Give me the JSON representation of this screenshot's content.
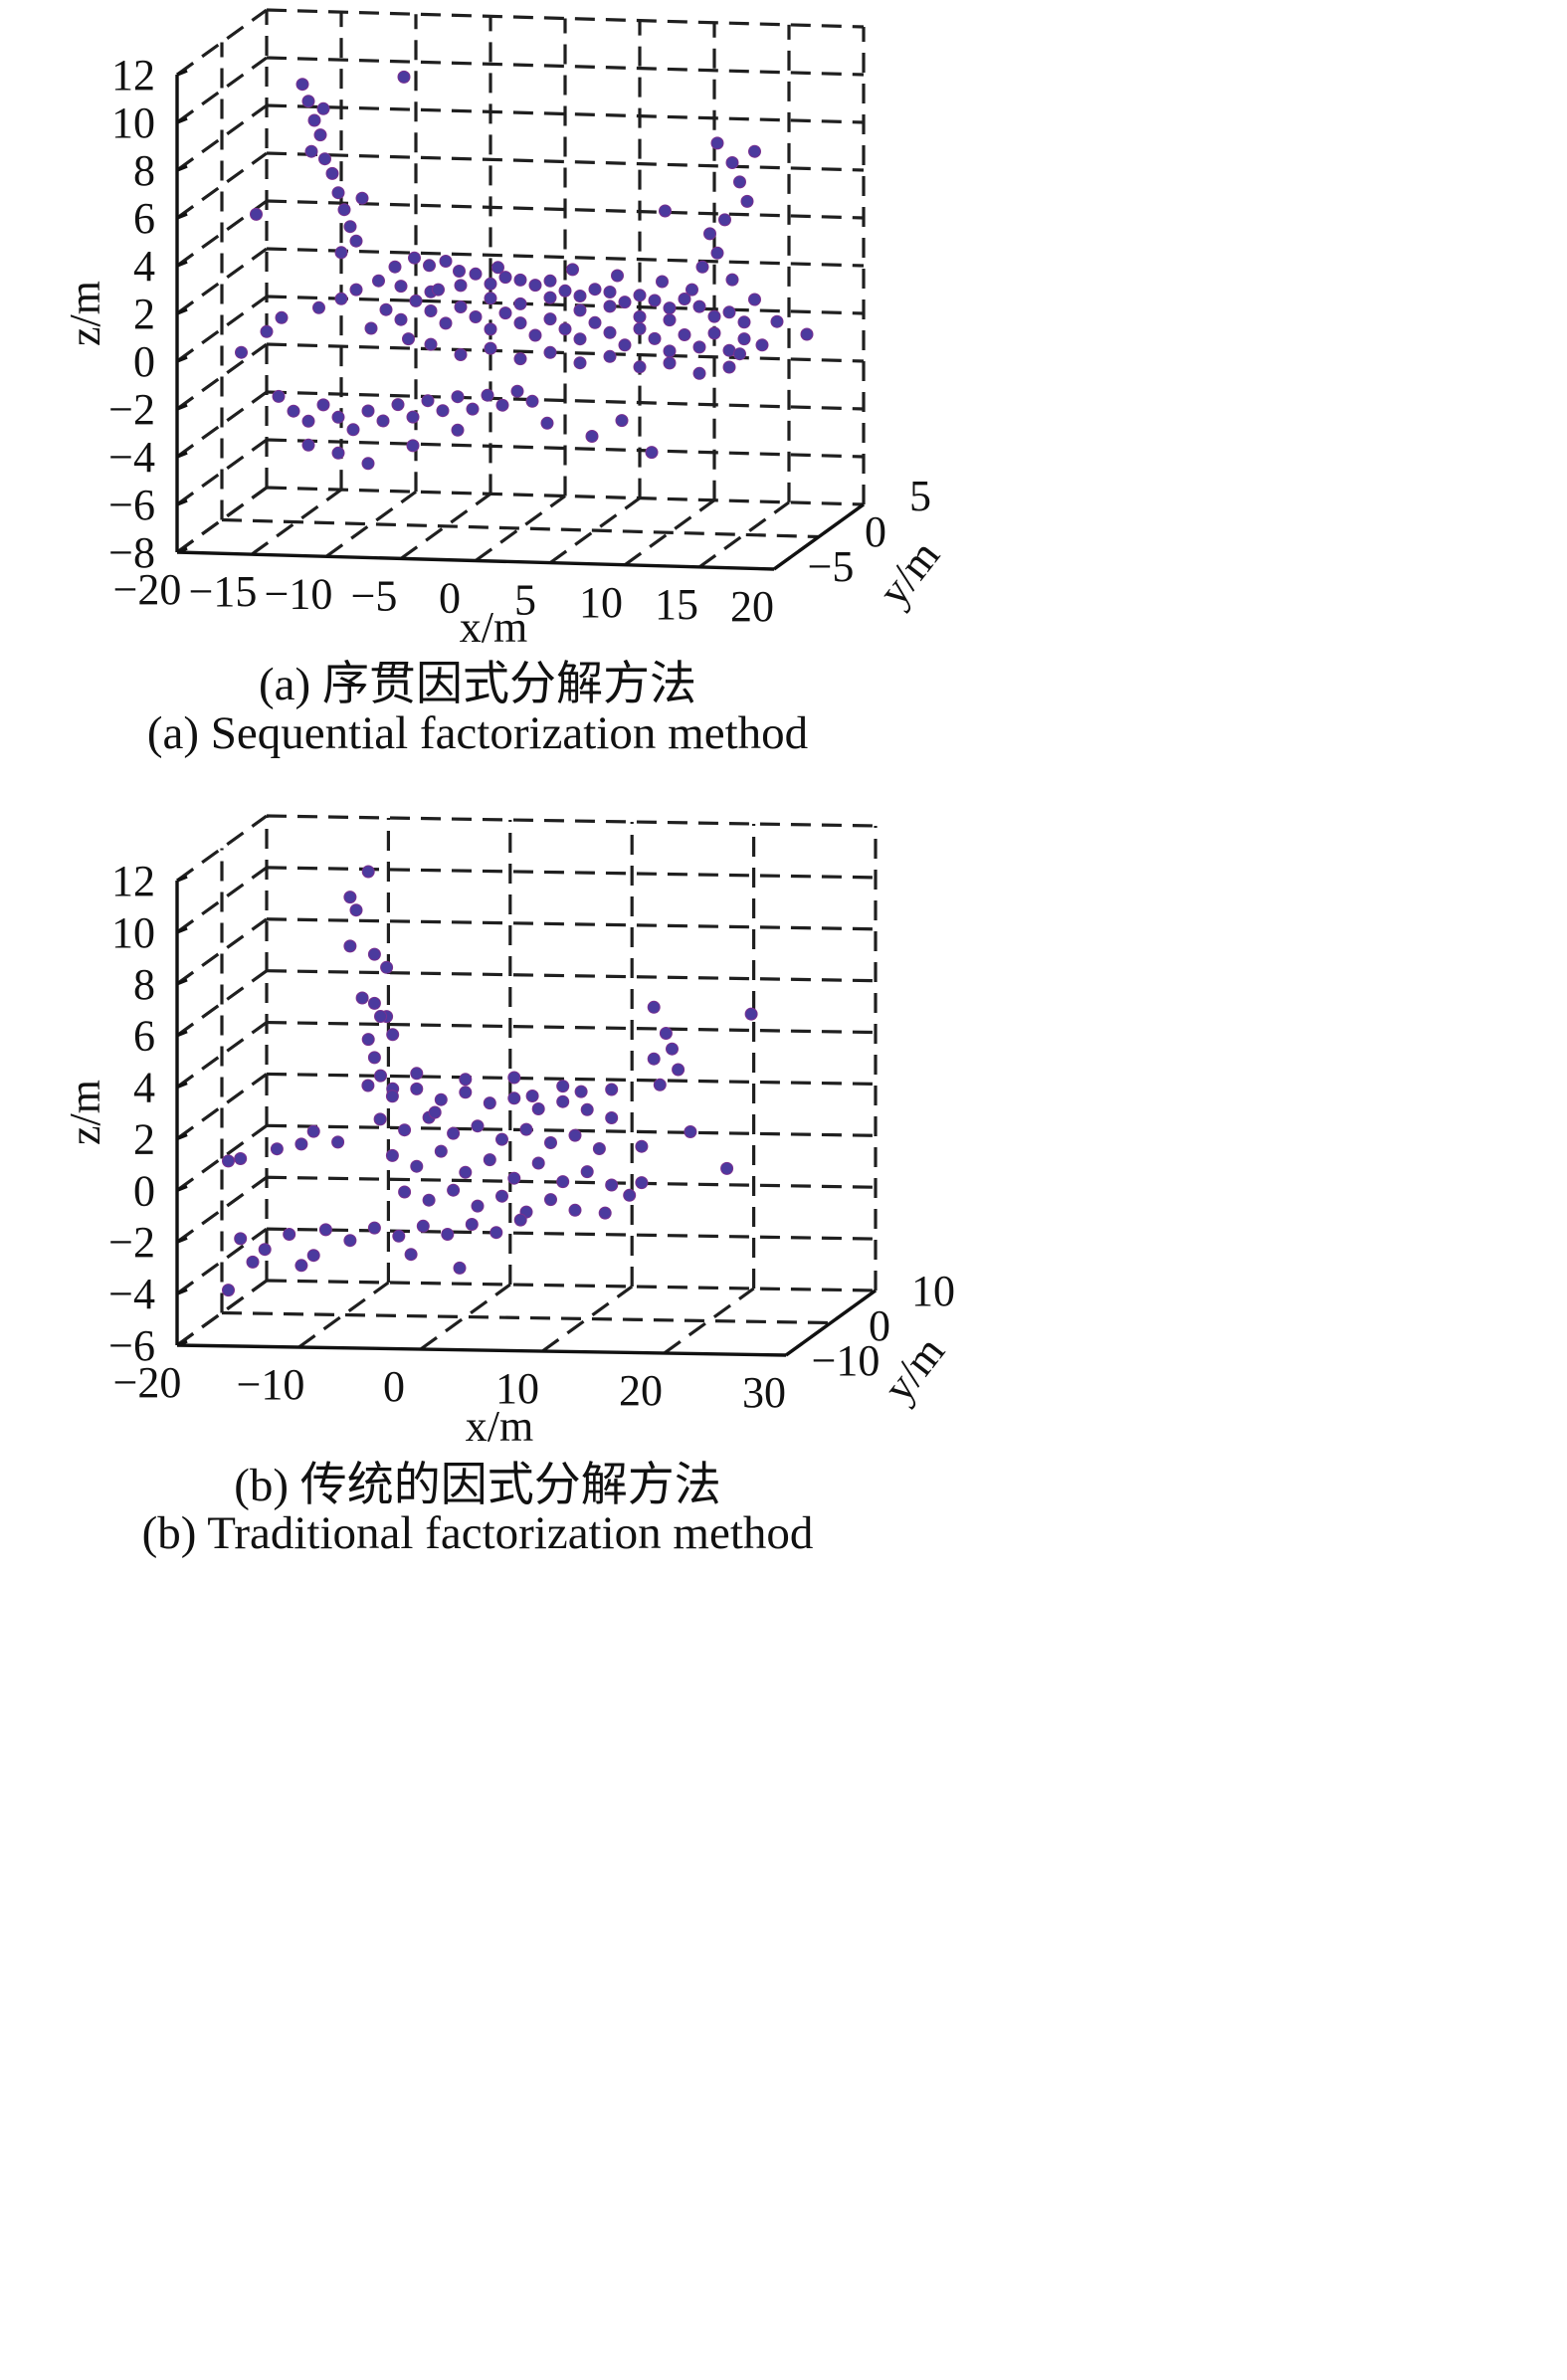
{
  "chart_data": [
    {
      "type": "scatter",
      "title": "",
      "xlabel": "x/m",
      "ylabel": "y/m",
      "zlabel": "z/m",
      "x_ticks": [
        "−20",
        "−15",
        "−10",
        "−5",
        "0",
        "5",
        "10",
        "15",
        "20"
      ],
      "y_ticks": [
        "−5",
        "0",
        "5"
      ],
      "z_ticks": [
        "12",
        "10",
        "8",
        "6",
        "4",
        "2",
        "0",
        "−2",
        "−4",
        "−6",
        "−8"
      ],
      "xlim": [
        -20,
        20
      ],
      "ylim": [
        -5,
        5
      ],
      "zlim": [
        -8,
        12
      ],
      "grid": true,
      "caption_cn": "(a) 序贯因式分解方法",
      "caption_en": "(a) Sequential factorization method",
      "marker_color": "#4b3a9e",
      "points": [
        [
          -13.4,
          -2,
          10.9
        ],
        [
          -13,
          -2,
          10.2
        ],
        [
          -12.6,
          -2,
          9.4
        ],
        [
          -12.2,
          -2,
          8.8
        ],
        [
          -11.9,
          -2,
          7.8
        ],
        [
          -11.4,
          -2,
          7.2
        ],
        [
          -11,
          -2,
          6.4
        ],
        [
          -10.6,
          -2,
          5.7
        ],
        [
          -10.2,
          -2,
          5
        ],
        [
          -12.8,
          -2,
          8.1
        ],
        [
          -12,
          -2,
          9.9
        ],
        [
          -9.8,
          -2,
          4.4
        ],
        [
          -9.4,
          -2,
          6.2
        ],
        [
          -10.8,
          -2,
          3.9
        ],
        [
          -9,
          2,
          10.2
        ],
        [
          -16.5,
          -2,
          5.4
        ],
        [
          -17.5,
          -2,
          -0.4
        ],
        [
          -15.8,
          -2,
          0.5
        ],
        [
          -14.8,
          -2,
          1.1
        ],
        [
          -13.5,
          0,
          1
        ],
        [
          -12,
          0,
          1.4
        ],
        [
          -11,
          0,
          1.8
        ],
        [
          -9.5,
          0,
          2.2
        ],
        [
          -8.4,
          0,
          2.8
        ],
        [
          -7.1,
          0,
          3.2
        ],
        [
          -6.1,
          0,
          2.9
        ],
        [
          -5,
          0,
          3.1
        ],
        [
          -4.1,
          0,
          2.7
        ],
        [
          -3,
          0,
          2.6
        ],
        [
          -2,
          0,
          2.2
        ],
        [
          -1,
          0,
          2.5
        ],
        [
          0,
          0,
          2.4
        ],
        [
          1,
          0,
          2.2
        ],
        [
          2,
          0,
          2.4
        ],
        [
          3,
          0,
          2
        ],
        [
          4,
          0,
          1.8
        ],
        [
          5,
          0,
          2.1
        ],
        [
          6,
          0,
          2
        ],
        [
          7,
          0,
          1.6
        ],
        [
          8,
          0,
          1.9
        ],
        [
          9,
          0,
          1.7
        ],
        [
          10,
          0,
          1.4
        ],
        [
          11,
          0,
          1.8
        ],
        [
          12,
          0,
          1.5
        ],
        [
          13,
          0,
          1.1
        ],
        [
          14,
          0,
          1.3
        ],
        [
          15,
          0,
          0.9
        ],
        [
          -9,
          0,
          1
        ],
        [
          -8,
          0,
          0.6
        ],
        [
          -7,
          0,
          1.4
        ],
        [
          -6,
          0,
          1
        ],
        [
          -5,
          0,
          0.5
        ],
        [
          -4,
          0,
          1.2
        ],
        [
          -3,
          0,
          0.8
        ],
        [
          -2,
          0,
          0.3
        ],
        [
          -1,
          0,
          1
        ],
        [
          0,
          0,
          0.6
        ],
        [
          1,
          0,
          0.1
        ],
        [
          2,
          0,
          0.8
        ],
        [
          3,
          0,
          0.4
        ],
        [
          4,
          0,
          0
        ],
        [
          5,
          0,
          0.7
        ],
        [
          6,
          0,
          0.3
        ],
        [
          7,
          0,
          -0.2
        ],
        [
          8,
          0,
          0.5
        ],
        [
          9,
          0,
          0.1
        ],
        [
          10,
          0,
          -0.4
        ],
        [
          11,
          0,
          0.3
        ],
        [
          12,
          0,
          -0.2
        ],
        [
          13,
          0,
          0.4
        ],
        [
          14,
          0,
          -0.3
        ],
        [
          15,
          0,
          0.2
        ],
        [
          -8,
          0,
          2
        ],
        [
          -6,
          0,
          1.8
        ],
        [
          -4,
          0,
          2.1
        ],
        [
          -2,
          0,
          1.6
        ],
        [
          0,
          0,
          1.4
        ],
        [
          2,
          0,
          1.7
        ],
        [
          4,
          0,
          1.2
        ],
        [
          6,
          0,
          1.4
        ],
        [
          8,
          0,
          1
        ],
        [
          10,
          0,
          0.9
        ],
        [
          -6,
          0,
          -0.4
        ],
        [
          -4,
          0,
          -0.8
        ],
        [
          -2,
          0,
          -0.5
        ],
        [
          0,
          0,
          -0.9
        ],
        [
          2,
          0,
          -0.6
        ],
        [
          4,
          0,
          -1
        ],
        [
          6,
          0,
          -0.7
        ],
        [
          8,
          0,
          -1.1
        ],
        [
          10,
          0,
          -0.9
        ],
        [
          12,
          0,
          -1.3
        ],
        [
          14,
          0,
          -1
        ],
        [
          -15,
          -2,
          -2.2
        ],
        [
          -14,
          -2,
          -2.8
        ],
        [
          -13,
          -2,
          -3.2
        ],
        [
          -12,
          -2,
          -2.5
        ],
        [
          -11,
          -2,
          -3
        ],
        [
          -10,
          -2,
          -3.5
        ],
        [
          -9,
          -2,
          -2.7
        ],
        [
          -8,
          -2,
          -3.1
        ],
        [
          -7,
          -2,
          -2.4
        ],
        [
          -6,
          -2,
          -2.9
        ],
        [
          -5,
          -2,
          -2.2
        ],
        [
          -4,
          -2,
          -2.6
        ],
        [
          -3,
          -2,
          -2
        ],
        [
          -2,
          -2,
          -2.5
        ],
        [
          -1,
          -2,
          -1.9
        ],
        [
          0,
          -2,
          -2.3
        ],
        [
          1,
          -2,
          -1.7
        ],
        [
          2,
          -2,
          -2.1
        ],
        [
          -13,
          -2,
          -4.2
        ],
        [
          -11,
          -2,
          -4.5
        ],
        [
          -9,
          -2,
          -4.9
        ],
        [
          -6,
          -2,
          -4.1
        ],
        [
          -3,
          -2,
          -3.4
        ],
        [
          3,
          -2,
          -3
        ],
        [
          6,
          -2,
          -3.5
        ],
        [
          8,
          -2,
          -2.8
        ],
        [
          10,
          -2,
          -4.1
        ],
        [
          12,
          2,
          7.8
        ],
        [
          13,
          2,
          7
        ],
        [
          13.5,
          2,
          6.2
        ],
        [
          14,
          2,
          5.4
        ],
        [
          12.5,
          2,
          4.6
        ],
        [
          11.5,
          2,
          4
        ],
        [
          12,
          2,
          3.2
        ],
        [
          11,
          2,
          2.6
        ],
        [
          13,
          2,
          2.1
        ],
        [
          14.5,
          2,
          1.3
        ],
        [
          16,
          2,
          0.4
        ],
        [
          15,
          2,
          -0.6
        ],
        [
          13.5,
          2,
          -1
        ],
        [
          18,
          2,
          -0.1
        ],
        [
          8.5,
          2,
          4.9
        ],
        [
          14.5,
          2,
          7.5
        ],
        [
          -10,
          0,
          0.2
        ],
        [
          -7.5,
          0,
          -0.2
        ],
        [
          -5.5,
          0,
          1.9
        ],
        [
          -1.5,
          0,
          2.9
        ],
        [
          3.5,
          0,
          2.9
        ],
        [
          6.5,
          0,
          2.7
        ],
        [
          9.5,
          0,
          2.5
        ],
        [
          11.5,
          0,
          2.2
        ]
      ]
    },
    {
      "type": "scatter",
      "title": "",
      "xlabel": "x/m",
      "ylabel": "y/m",
      "zlabel": "z/m",
      "x_ticks": [
        "−20",
        "−10",
        "0",
        "10",
        "20",
        "30"
      ],
      "y_ticks": [
        "−10",
        "0",
        "10"
      ],
      "z_ticks": [
        "12",
        "10",
        "8",
        "6",
        "4",
        "2",
        "0",
        "−2",
        "−4",
        "−6"
      ],
      "xlim": [
        -20,
        30
      ],
      "ylim": [
        -10,
        10
      ],
      "zlim": [
        -6,
        12
      ],
      "grid": true,
      "caption_cn": "(b) 传统的因式分解方法",
      "caption_en": "(b) Traditional factorization method",
      "marker_color": "#4b3a9e",
      "points": [
        [
          -6.5,
          -4,
          11.7
        ],
        [
          -8,
          -4,
          10.7
        ],
        [
          -7.5,
          -4,
          10.2
        ],
        [
          -8,
          -4,
          8.8
        ],
        [
          -6,
          -4,
          8.5
        ],
        [
          -5,
          -4,
          8
        ],
        [
          -7,
          -4,
          6.8
        ],
        [
          -6,
          -4,
          6.6
        ],
        [
          -5,
          -4,
          6.1
        ],
        [
          -4.5,
          -4,
          5.4
        ],
        [
          -6.5,
          -4,
          5.2
        ],
        [
          -6,
          -4,
          4.5
        ],
        [
          -5.5,
          -4,
          3.8
        ],
        [
          -4.5,
          -4,
          3.3
        ],
        [
          -5.5,
          -4,
          6.1
        ],
        [
          -18,
          -4,
          0.4
        ],
        [
          -17,
          -4,
          0.5
        ],
        [
          -14,
          -4,
          0.9
        ],
        [
          -12,
          -4,
          1.1
        ],
        [
          -11,
          -4,
          1.6
        ],
        [
          -9,
          -4,
          1.2
        ],
        [
          -8,
          0,
          2.9
        ],
        [
          -6,
          0,
          2.5
        ],
        [
          -4,
          0,
          2.8
        ],
        [
          -2,
          0,
          2.4
        ],
        [
          0,
          0,
          2.7
        ],
        [
          2,
          0,
          2.3
        ],
        [
          4,
          0,
          2.5
        ],
        [
          6,
          0,
          2.1
        ],
        [
          8,
          0,
          2.4
        ],
        [
          10,
          0,
          2.1
        ],
        [
          12,
          0,
          1.8
        ],
        [
          -7,
          0,
          1.6
        ],
        [
          -5,
          0,
          1.2
        ],
        [
          -3,
          0,
          1.7
        ],
        [
          -1,
          0,
          1.1
        ],
        [
          1,
          0,
          1.4
        ],
        [
          3,
          0,
          0.9
        ],
        [
          5,
          0,
          1.3
        ],
        [
          7,
          0,
          0.8
        ],
        [
          9,
          0,
          1.1
        ],
        [
          11,
          0,
          0.6
        ],
        [
          -6,
          0,
          0.2
        ],
        [
          -4,
          0,
          -0.2
        ],
        [
          -2,
          0,
          0.4
        ],
        [
          0,
          0,
          -0.4
        ],
        [
          2,
          0,
          0.1
        ],
        [
          4,
          0,
          -0.6
        ],
        [
          6,
          0,
          0
        ],
        [
          8,
          0,
          -0.7
        ],
        [
          10,
          0,
          -0.3
        ],
        [
          12,
          0,
          -0.8
        ],
        [
          -5,
          0,
          -1.2
        ],
        [
          -3,
          0,
          -1.5
        ],
        [
          -1,
          0,
          -1.1
        ],
        [
          1,
          0,
          -1.7
        ],
        [
          3,
          0,
          -1.3
        ],
        [
          5,
          0,
          -1.9
        ],
        [
          7,
          0,
          -1.4
        ],
        [
          9,
          0,
          -1.8
        ],
        [
          -4,
          0,
          3.4
        ],
        [
          0,
          0,
          3.2
        ],
        [
          4,
          0,
          3.3
        ],
        [
          8,
          0,
          3
        ],
        [
          12,
          0,
          2.9
        ],
        [
          -17,
          -4,
          -2.6
        ],
        [
          -15,
          -4,
          -3
        ],
        [
          -13,
          -4,
          -2.4
        ],
        [
          -11,
          -4,
          -3.2
        ],
        [
          -10,
          -4,
          -2.2
        ],
        [
          -8,
          -4,
          -2.6
        ],
        [
          -6,
          -4,
          -2.1
        ],
        [
          -4,
          -4,
          -2.4
        ],
        [
          -2,
          -4,
          -2
        ],
        [
          0,
          -4,
          -2.3
        ],
        [
          2,
          -4,
          -1.9
        ],
        [
          4,
          -4,
          -2.2
        ],
        [
          6,
          -4,
          -1.7
        ],
        [
          -16,
          -4,
          -3.5
        ],
        [
          -18,
          -4,
          -4.6
        ],
        [
          -12,
          -4,
          -3.6
        ],
        [
          -3,
          -4,
          -3.1
        ],
        [
          1,
          -4,
          -3.6
        ],
        [
          14,
          4,
          5.6
        ],
        [
          15,
          4,
          4.6
        ],
        [
          15.5,
          4,
          4
        ],
        [
          14,
          4,
          3.6
        ],
        [
          16,
          4,
          3.2
        ],
        [
          14.5,
          4,
          2.6
        ],
        [
          17,
          4,
          0.8
        ],
        [
          22,
          4,
          5.4
        ],
        [
          20,
          4,
          -0.6
        ],
        [
          13,
          4,
          0.2
        ],
        [
          13,
          4,
          -1.2
        ],
        [
          12,
          4,
          -1.7
        ],
        [
          10,
          4,
          -2.4
        ],
        [
          9.5,
          0,
          2.8
        ],
        [
          -2.5,
          0,
          1.9
        ],
        [
          5.5,
          0,
          2.6
        ]
      ]
    }
  ]
}
